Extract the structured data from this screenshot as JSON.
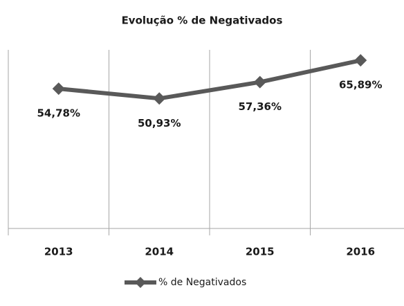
{
  "chart_data": {
    "type": "line",
    "title": "Evolução % de Negativados",
    "categories": [
      "2013",
      "2014",
      "2015",
      "2016"
    ],
    "series": [
      {
        "name": "% de Negativados",
        "color": "#595959",
        "values": [
          54.78,
          50.93,
          57.36,
          65.89
        ],
        "value_labels": [
          "54,78%",
          "50,93%",
          "57,36%",
          "65,89%"
        ]
      }
    ],
    "ylim": [
      0,
      70
    ],
    "legend": "bottom"
  }
}
